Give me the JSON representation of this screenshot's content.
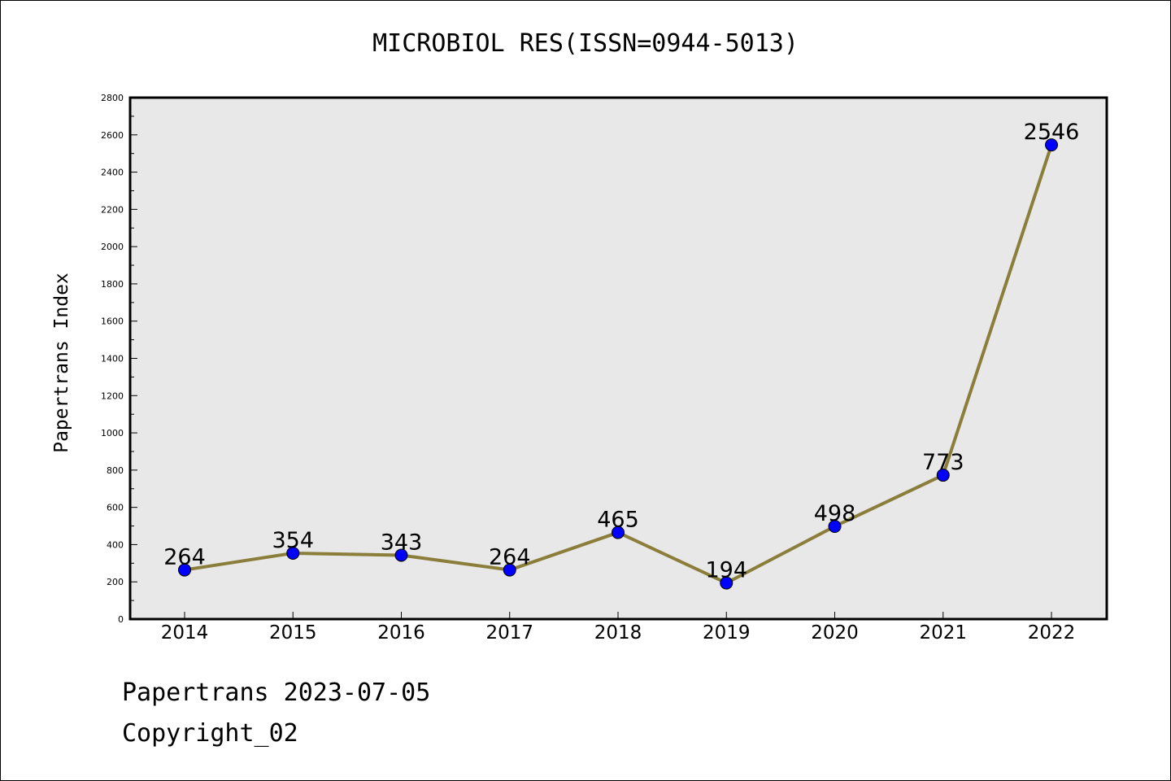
{
  "header": {
    "title": "MICROBIOL RES(ISSN=0944-5013)"
  },
  "footer": {
    "line1": "Papertrans 2023-07-05",
    "line2": "Copyright_02"
  },
  "colors": {
    "plot_bg": "#e8e8e8",
    "line": "#8b7d3a",
    "marker": "#0000ff"
  },
  "chart_data": {
    "type": "line",
    "title": "MICROBIOL RES(ISSN=0944-5013)",
    "xlabel": "",
    "ylabel": "Papertrans Index",
    "ylim": [
      0,
      2800
    ],
    "yticks": [
      0,
      200,
      400,
      600,
      800,
      1000,
      1200,
      1400,
      1600,
      1800,
      2000,
      2200,
      2400,
      2600,
      2800
    ],
    "categories": [
      "2014",
      "2015",
      "2016",
      "2017",
      "2018",
      "2019",
      "2020",
      "2021",
      "2022"
    ],
    "values": [
      264,
      354,
      343,
      264,
      465,
      194,
      498,
      773,
      2546
    ],
    "grid": false,
    "legend": "none"
  }
}
